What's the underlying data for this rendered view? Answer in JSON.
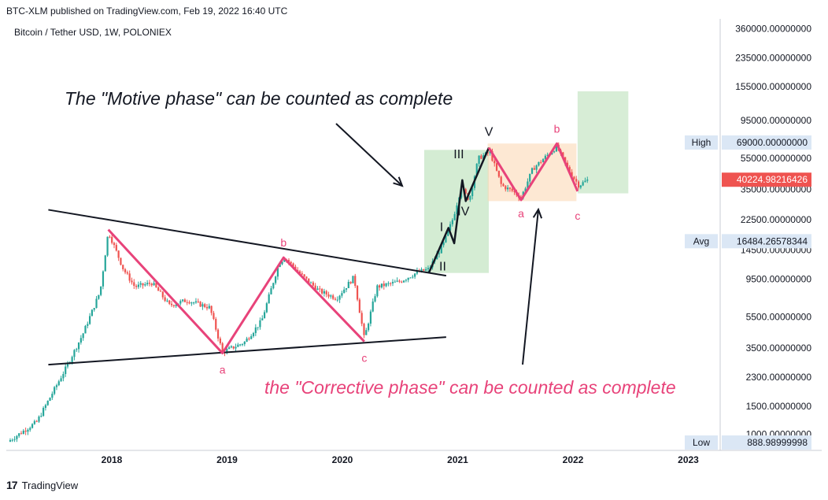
{
  "header": {
    "published": "BTC-XLM published on TradingView.com, Feb 19, 2022 16:40 UTC",
    "symbol": "Bitcoin / Tether USD, 1W, POLONIEX"
  },
  "footer": {
    "brand": "TradingView",
    "logo_glyph": "17"
  },
  "annotations": {
    "motive": "The \"Motive phase\" can be counted as complete",
    "corrective": "the \"Corrective phase\" can be counted as complete"
  },
  "colors": {
    "up": "#26a69a",
    "down": "#ef5350",
    "pink": "#e8437a",
    "black": "#131722",
    "green_box": "#b7dfb5",
    "orange_box": "#fbd9b5",
    "price_badge": "#ef5350",
    "info_badge": "#dbe7f5"
  },
  "chart_data": {
    "type": "candlestick",
    "title": "Bitcoin / Tether USD, 1W, POLONIEX",
    "x_ticks": [
      "2018",
      "2019",
      "2020",
      "2021",
      "2022",
      "2023"
    ],
    "y_ticks": [
      "360000.00000000",
      "235000.00000000",
      "155000.00000000",
      "95000.00000000",
      "55000.00000000",
      "35000.00000000",
      "22500.00000000",
      "14500.00000000",
      "9500.00000000",
      "5500.00000000",
      "3500.00000000",
      "2300.00000000",
      "1500.00000000",
      "1000.00000000"
    ],
    "y_scale": "log",
    "price": {
      "label": "40224.98216426",
      "value": 40224.98
    },
    "high": {
      "tag": "High",
      "label": "69000.00000000",
      "value": 69000
    },
    "avg": {
      "tag": "Avg",
      "label": "16484.26578344",
      "value": 16484.27
    },
    "low": {
      "tag": "Low",
      "label": "888.98999998",
      "value": 888.99
    },
    "wave_labels": {
      "impulse": [
        "I",
        "II",
        "III",
        "IV",
        "V"
      ],
      "triangle": [
        "a",
        "b",
        "c"
      ],
      "correction": [
        "a",
        "b",
        "c"
      ]
    },
    "anchors": [
      {
        "t": 2017.1,
        "p": 900
      },
      {
        "t": 2017.35,
        "p": 1200
      },
      {
        "t": 2017.6,
        "p": 2600
      },
      {
        "t": 2017.75,
        "p": 4300
      },
      {
        "t": 2017.9,
        "p": 8000
      },
      {
        "t": 2017.97,
        "p": 19000
      },
      {
        "t": 2018.1,
        "p": 11000
      },
      {
        "t": 2018.2,
        "p": 8500
      },
      {
        "t": 2018.35,
        "p": 9000
      },
      {
        "t": 2018.5,
        "p": 6500
      },
      {
        "t": 2018.65,
        "p": 7000
      },
      {
        "t": 2018.85,
        "p": 6300
      },
      {
        "t": 2018.96,
        "p": 3300
      },
      {
        "t": 2019.15,
        "p": 3800
      },
      {
        "t": 2019.3,
        "p": 5200
      },
      {
        "t": 2019.45,
        "p": 12000
      },
      {
        "t": 2019.5,
        "p": 13000
      },
      {
        "t": 2019.65,
        "p": 10000
      },
      {
        "t": 2019.8,
        "p": 8000
      },
      {
        "t": 2019.95,
        "p": 7200
      },
      {
        "t": 2020.1,
        "p": 9800
      },
      {
        "t": 2020.19,
        "p": 4000
      },
      {
        "t": 2020.3,
        "p": 8500
      },
      {
        "t": 2020.5,
        "p": 9200
      },
      {
        "t": 2020.65,
        "p": 10500
      },
      {
        "t": 2020.75,
        "p": 11000
      },
      {
        "t": 2020.88,
        "p": 16000
      },
      {
        "t": 2020.96,
        "p": 23000
      },
      {
        "t": 2021.03,
        "p": 36000
      },
      {
        "t": 2021.1,
        "p": 30000
      },
      {
        "t": 2021.18,
        "p": 55000
      },
      {
        "t": 2021.28,
        "p": 60000
      },
      {
        "t": 2021.38,
        "p": 37000
      },
      {
        "t": 2021.48,
        "p": 34000
      },
      {
        "t": 2021.55,
        "p": 31000
      },
      {
        "t": 2021.65,
        "p": 47000
      },
      {
        "t": 2021.75,
        "p": 55000
      },
      {
        "t": 2021.86,
        "p": 65000
      },
      {
        "t": 2021.95,
        "p": 48000
      },
      {
        "t": 2022.05,
        "p": 37000
      },
      {
        "t": 2022.13,
        "p": 40225
      }
    ]
  }
}
